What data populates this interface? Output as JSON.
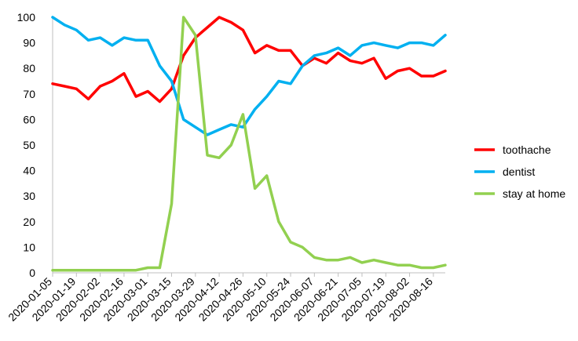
{
  "chart_data": {
    "type": "line",
    "title": "",
    "xlabel": "",
    "ylabel": "",
    "ylim": [
      0,
      100
    ],
    "yticks": [
      0,
      10,
      20,
      30,
      40,
      50,
      60,
      70,
      80,
      90,
      100
    ],
    "grid": false,
    "legend_position": "right",
    "x": [
      "2020-01-05",
      "2020-01-12",
      "2020-01-19",
      "2020-01-26",
      "2020-02-02",
      "2020-02-09",
      "2020-02-16",
      "2020-02-23",
      "2020-03-01",
      "2020-03-08",
      "2020-03-15",
      "2020-03-22",
      "2020-03-29",
      "2020-04-05",
      "2020-04-12",
      "2020-04-19",
      "2020-04-26",
      "2020-05-03",
      "2020-05-10",
      "2020-05-17",
      "2020-05-24",
      "2020-05-31",
      "2020-06-07",
      "2020-06-14",
      "2020-06-21",
      "2020-06-28",
      "2020-07-05",
      "2020-07-12",
      "2020-07-19",
      "2020-07-26",
      "2020-08-02",
      "2020-08-09",
      "2020-08-16",
      "2020-08-23"
    ],
    "xtick_labels": [
      "2020-01-05",
      "2020-01-19",
      "2020-02-02",
      "2020-02-16",
      "2020-03-01",
      "2020-03-15",
      "2020-03-29",
      "2020-04-12",
      "2020-04-26",
      "2020-05-10",
      "2020-05-24",
      "2020-06-07",
      "2020-06-21",
      "2020-07-05",
      "2020-07-19",
      "2020-08-02",
      "2020-08-16"
    ],
    "series": [
      {
        "name": "toothache",
        "color": "#ff0000",
        "values": [
          74,
          73,
          72,
          68,
          73,
          75,
          78,
          69,
          71,
          67,
          72,
          85,
          92,
          96,
          100,
          98,
          95,
          86,
          89,
          87,
          87,
          81,
          84,
          82,
          86,
          83,
          82,
          84,
          76,
          79,
          80,
          77,
          77,
          79
        ]
      },
      {
        "name": "dentist",
        "color": "#00b0f0",
        "values": [
          100,
          97,
          95,
          91,
          92,
          89,
          92,
          91,
          91,
          81,
          75,
          60,
          57,
          54,
          56,
          58,
          57,
          64,
          69,
          75,
          74,
          81,
          85,
          86,
          88,
          85,
          89,
          90,
          89,
          88,
          90,
          90,
          89,
          93
        ]
      },
      {
        "name": "stay at home",
        "color": "#92d050",
        "values": [
          1,
          1,
          1,
          1,
          1,
          1,
          1,
          1,
          2,
          2,
          27,
          100,
          93,
          46,
          45,
          50,
          62,
          33,
          38,
          20,
          12,
          10,
          6,
          5,
          5,
          6,
          4,
          5,
          4,
          3,
          3,
          2,
          2,
          3
        ]
      }
    ]
  }
}
